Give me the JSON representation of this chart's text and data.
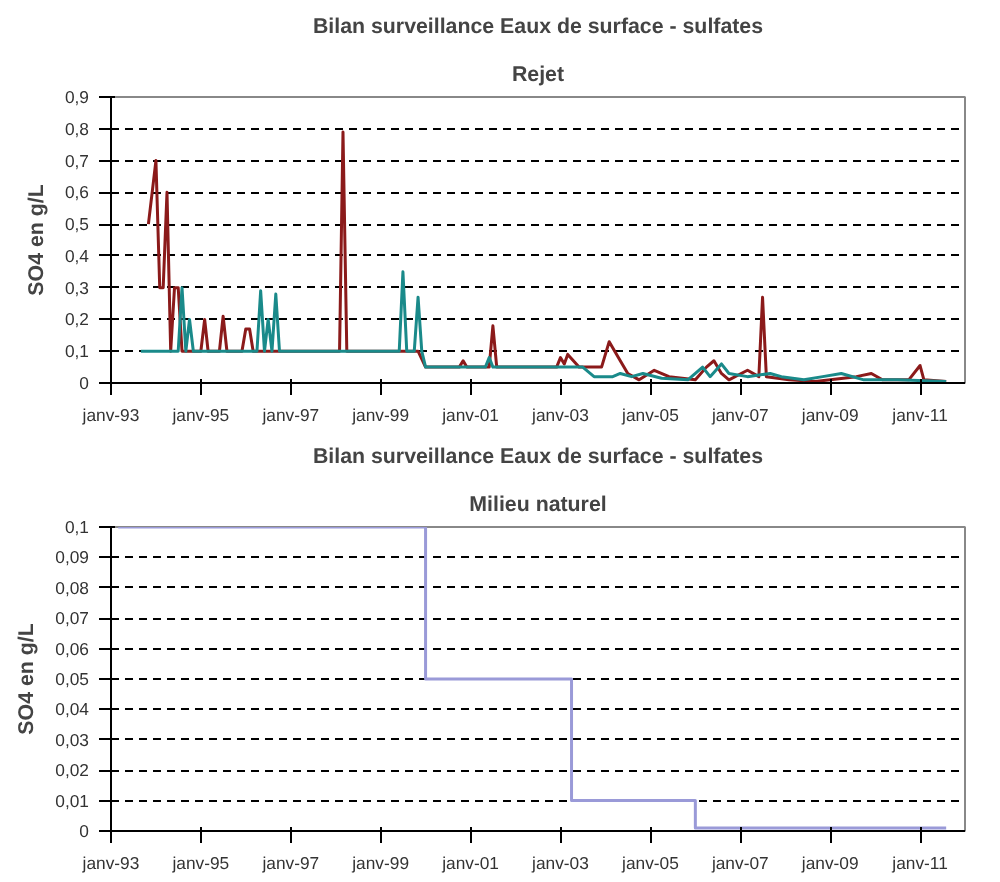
{
  "chart_data": [
    {
      "type": "line",
      "title": "Bilan surveillance Eaux de surface - sulfates",
      "subtitle": "Rejet",
      "ylabel": "SO4 en g/L",
      "grid": "y",
      "xlim": [
        "1993-01",
        "2012-01"
      ],
      "xticks": [
        {
          "value": "1993-01",
          "label": "janv-93"
        },
        {
          "value": "1995-01",
          "label": "janv-95"
        },
        {
          "value": "1997-01",
          "label": "janv-97"
        },
        {
          "value": "1999-01",
          "label": "janv-99"
        },
        {
          "value": "2001-01",
          "label": "janv-01"
        },
        {
          "value": "2003-01",
          "label": "janv-03"
        },
        {
          "value": "2005-01",
          "label": "janv-05"
        },
        {
          "value": "2007-01",
          "label": "janv-07"
        },
        {
          "value": "2009-01",
          "label": "janv-09"
        },
        {
          "value": "2011-01",
          "label": "janv-11"
        }
      ],
      "ylim": [
        0,
        0.9
      ],
      "yticks": [
        0,
        {
          "value": 0.1,
          "label": "0,1"
        },
        {
          "value": 0.2,
          "label": "0,2"
        },
        {
          "value": 0.3,
          "label": "0,3"
        },
        {
          "value": 0.4,
          "label": "0,4"
        },
        {
          "value": 0.5,
          "label": "0,5"
        },
        {
          "value": 0.6,
          "label": "0,6"
        },
        {
          "value": 0.7,
          "label": "0,7"
        },
        {
          "value": 0.8,
          "label": "0,8"
        },
        {
          "value": 0.9,
          "label": "0,9"
        }
      ],
      "series": [
        {
          "color": "#8b1a1a",
          "x": [
            "1993-11",
            "1994-01",
            "1994-02",
            "1994-03",
            "1994-04",
            "1994-05",
            "1994-06",
            "1994-07",
            "1994-08",
            "1995-01",
            "1995-02",
            "1995-03",
            "1995-06",
            "1995-07",
            "1995-08",
            "1995-12",
            "1996-01",
            "1996-02",
            "1996-03",
            "1998-02",
            "1998-03",
            "1998-04",
            "1999-11",
            "2000-01",
            "2000-10",
            "2000-11",
            "2000-12",
            "2001-06",
            "2001-07",
            "2001-08",
            "2002-12",
            "2003-01",
            "2003-02",
            "2003-03",
            "2003-06",
            "2003-12",
            "2004-02",
            "2004-05",
            "2004-07",
            "2004-10",
            "2005-02",
            "2005-06",
            "2006-01",
            "2006-04",
            "2006-06",
            "2006-08",
            "2006-10",
            "2007-03",
            "2007-06",
            "2007-07",
            "2007-08",
            "2008-02",
            "2008-09",
            "2009-08",
            "2009-12",
            "2010-03",
            "2010-10",
            "2011-01",
            "2011-02",
            "2011-08"
          ],
          "values": [
            0.5,
            0.7,
            0.3,
            0.3,
            0.6,
            0.1,
            0.3,
            0.3,
            0.1,
            0.1,
            0.2,
            0.1,
            0.1,
            0.21,
            0.1,
            0.1,
            0.17,
            0.17,
            0.1,
            0.1,
            0.79,
            0.1,
            0.1,
            0.05,
            0.05,
            0.07,
            0.05,
            0.05,
            0.18,
            0.05,
            0.05,
            0.08,
            0.06,
            0.09,
            0.05,
            0.05,
            0.13,
            0.07,
            0.03,
            0.01,
            0.04,
            0.02,
            0.01,
            0.05,
            0.07,
            0.03,
            0.01,
            0.04,
            0.02,
            0.27,
            0.02,
            0.01,
            0.005,
            0.02,
            0.03,
            0.01,
            0.01,
            0.055,
            0.01,
            0.005
          ]
        },
        {
          "color": "#1a8a8a",
          "x": [
            "1993-09",
            "1994-07",
            "1994-08",
            "1994-09",
            "1994-10",
            "1994-11",
            "1996-04",
            "1996-05",
            "1996-06",
            "1996-07",
            "1996-08",
            "1996-09",
            "1996-10",
            "1999-06",
            "1999-07",
            "1999-08",
            "1999-10",
            "1999-11",
            "1999-12",
            "2000-01",
            "2001-05",
            "2001-06",
            "2001-07",
            "2003-07",
            "2003-10",
            "2004-03",
            "2004-05",
            "2004-08",
            "2004-11",
            "2005-04",
            "2005-11",
            "2006-03",
            "2006-05",
            "2006-08",
            "2006-10",
            "2007-03",
            "2007-09",
            "2007-12",
            "2008-06",
            "2008-11",
            "2009-04",
            "2009-10",
            "2010-07",
            "2011-08"
          ],
          "values": [
            0.1,
            0.1,
            0.3,
            0.1,
            0.2,
            0.1,
            0.1,
            0.29,
            0.1,
            0.2,
            0.1,
            0.28,
            0.1,
            0.1,
            0.35,
            0.1,
            0.1,
            0.27,
            0.1,
            0.05,
            0.05,
            0.08,
            0.05,
            0.05,
            0.02,
            0.02,
            0.03,
            0.02,
            0.03,
            0.015,
            0.01,
            0.05,
            0.02,
            0.06,
            0.03,
            0.02,
            0.03,
            0.02,
            0.01,
            0.02,
            0.03,
            0.01,
            0.01,
            0.005
          ]
        }
      ]
    },
    {
      "type": "step",
      "title": "Bilan surveillance Eaux de surface - sulfates",
      "subtitle": "Milieu naturel",
      "ylabel": "SO4 en g/L",
      "grid": "y",
      "xlim": [
        "1993-01",
        "2012-01"
      ],
      "xticks": [
        {
          "value": "1993-01",
          "label": "janv-93"
        },
        {
          "value": "1995-01",
          "label": "janv-95"
        },
        {
          "value": "1997-01",
          "label": "janv-97"
        },
        {
          "value": "1999-01",
          "label": "janv-99"
        },
        {
          "value": "2001-01",
          "label": "janv-01"
        },
        {
          "value": "2003-01",
          "label": "janv-03"
        },
        {
          "value": "2005-01",
          "label": "janv-05"
        },
        {
          "value": "2007-01",
          "label": "janv-07"
        },
        {
          "value": "2009-01",
          "label": "janv-09"
        },
        {
          "value": "2011-01",
          "label": "janv-11"
        }
      ],
      "ylim": [
        0,
        0.1
      ],
      "yticks": [
        0,
        {
          "value": 0.01,
          "label": "0,01"
        },
        {
          "value": 0.02,
          "label": "0,02"
        },
        {
          "value": 0.03,
          "label": "0,03"
        },
        {
          "value": 0.04,
          "label": "0,04"
        },
        {
          "value": 0.05,
          "label": "0,05"
        },
        {
          "value": 0.06,
          "label": "0,06"
        },
        {
          "value": 0.07,
          "label": "0,07"
        },
        {
          "value": 0.08,
          "label": "0,08"
        },
        {
          "value": 0.09,
          "label": "0,09"
        },
        {
          "value": 0.1,
          "label": "0,1"
        }
      ],
      "series": [
        {
          "color": "#9a9ad8",
          "x": [
            "1993-03",
            "2000-01",
            "2003-04",
            "2006-01",
            "2011-08"
          ],
          "values": [
            0.1,
            0.05,
            0.01,
            0.001,
            0.001
          ]
        }
      ]
    }
  ]
}
